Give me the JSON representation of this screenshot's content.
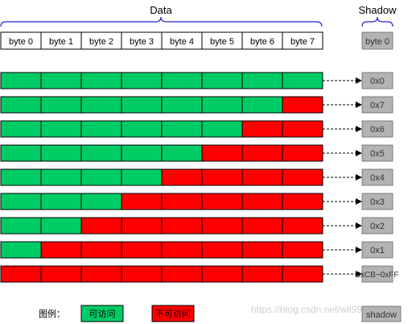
{
  "title_data": "Data",
  "title_shadow": "Shadow",
  "header_bytes": [
    "byte 0",
    "byte 1",
    "byte 2",
    "byte 3",
    "byte 4",
    "byte 5",
    "byte 6",
    "byte 7"
  ],
  "header_shadow": "byte 0",
  "rows": [
    {
      "accessible_bytes": 8,
      "shadow_value": "0x0"
    },
    {
      "accessible_bytes": 7,
      "shadow_value": "0x7"
    },
    {
      "accessible_bytes": 6,
      "shadow_value": "0x6"
    },
    {
      "accessible_bytes": 5,
      "shadow_value": "0x5"
    },
    {
      "accessible_bytes": 4,
      "shadow_value": "0x4"
    },
    {
      "accessible_bytes": 3,
      "shadow_value": "0x3"
    },
    {
      "accessible_bytes": 2,
      "shadow_value": "0x2"
    },
    {
      "accessible_bytes": 1,
      "shadow_value": "0x1"
    },
    {
      "accessible_bytes": 0,
      "shadow_value": "0xCB~0xFF"
    }
  ],
  "legend": {
    "label": "图例：",
    "accessible": "可访问",
    "inaccessible": "不可访问",
    "shadow": "shadow"
  },
  "watermark": "https://blog.csdn.net/wll999",
  "colors": {
    "accessible": "#00cc66",
    "inaccessible": "#ff0000",
    "shadow_fill": "#b3b3b3",
    "brace": "#2222cc"
  }
}
